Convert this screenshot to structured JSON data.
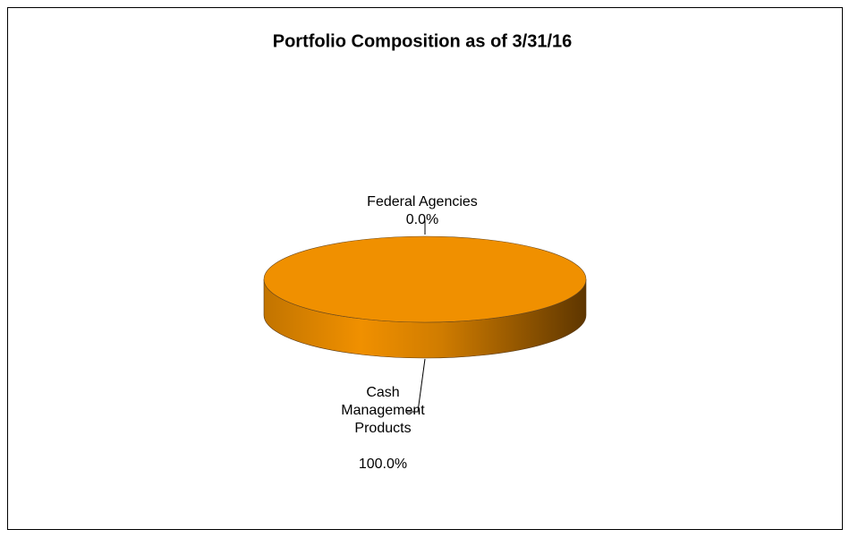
{
  "chart_data": {
    "type": "pie",
    "title": "Portfolio Composition as of 3/31/16",
    "categories": [
      "Federal Agencies",
      "Cash Management Products"
    ],
    "values": [
      0,
      100
    ],
    "value_labels": [
      "0.0%",
      "100.0%"
    ],
    "colors": [
      "#1f3f8f",
      "#f09000"
    ]
  }
}
